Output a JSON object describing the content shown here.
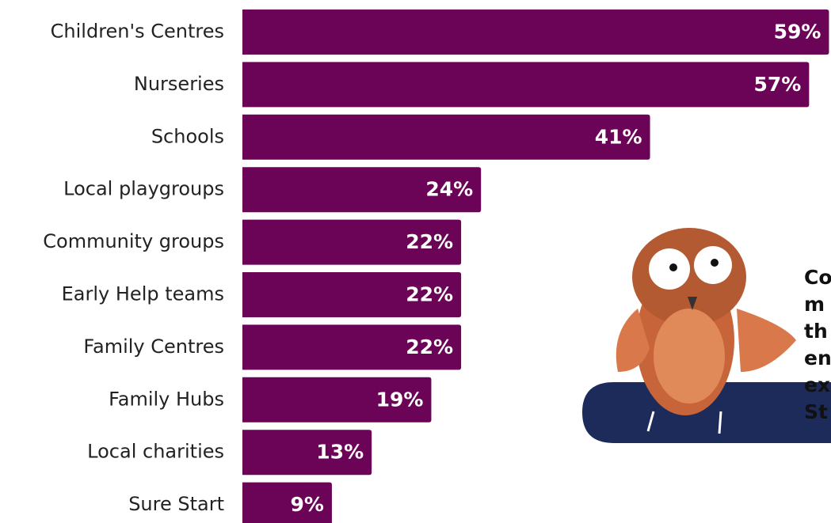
{
  "chart_data": {
    "type": "bar",
    "orientation": "horizontal",
    "categories": [
      "Children's Centres",
      "Nurseries",
      "Schools",
      "Local playgroups",
      "Community groups",
      "Early Help teams",
      "Family Centres",
      "Family Hubs",
      "Local charities",
      "Sure Start"
    ],
    "values": [
      59,
      57,
      41,
      24,
      22,
      22,
      22,
      19,
      13,
      9
    ],
    "value_labels": [
      "59%",
      "57%",
      "41%",
      "24%",
      "22%",
      "22%",
      "22%",
      "19%",
      "13%",
      "9%"
    ],
    "color": "#6b0457",
    "annotation": [
      "Co",
      "m",
      "th",
      "en",
      "ex",
      "St"
    ]
  }
}
